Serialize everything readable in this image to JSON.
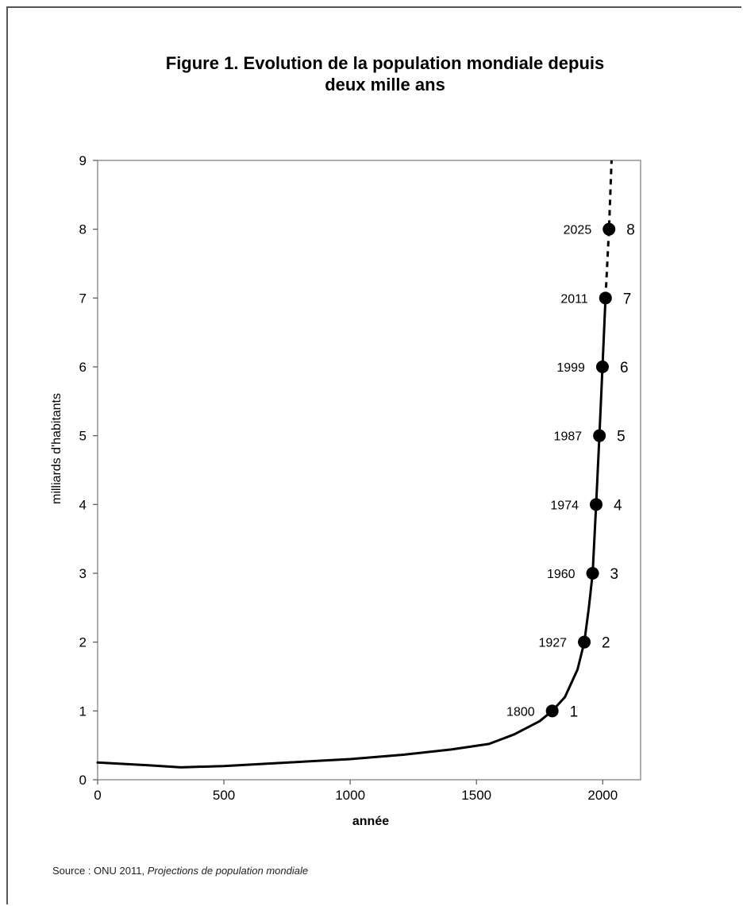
{
  "chart_data": {
    "type": "line",
    "title_line1": "Figure 1. Evolution de la population mondiale depuis",
    "title_line2": "deux mille ans",
    "xlabel": "année",
    "ylabel": "milliards d'habitants",
    "xlim": [
      0,
      2150
    ],
    "ylim": [
      0,
      9
    ],
    "x_ticks": [
      0,
      500,
      1000,
      1500,
      2000
    ],
    "y_ticks": [
      0,
      1,
      2,
      3,
      4,
      5,
      6,
      7,
      8,
      9
    ],
    "grid": false,
    "legend": "none",
    "line_color": "#000000",
    "series": [
      {
        "style": "solid",
        "x": [
          0,
          200,
          330,
          500,
          700,
          1000,
          1200,
          1400,
          1550,
          1650,
          1750,
          1800,
          1850,
          1900,
          1927,
          1945,
          1960,
          1974,
          1987,
          1999,
          2011
        ],
        "y": [
          0.25,
          0.21,
          0.18,
          0.2,
          0.24,
          0.3,
          0.36,
          0.44,
          0.52,
          0.66,
          0.85,
          1.0,
          1.2,
          1.6,
          2.0,
          2.5,
          3.0,
          4.0,
          5.0,
          6.0,
          7.0
        ]
      },
      {
        "style": "dashed",
        "x": [
          2011,
          2025,
          2035
        ],
        "y": [
          7.0,
          8.0,
          9.0
        ]
      }
    ],
    "milestones": [
      {
        "year": 1800,
        "year_label": "1800",
        "value": 1,
        "value_label": "1"
      },
      {
        "year": 1927,
        "year_label": "1927",
        "value": 2,
        "value_label": "2"
      },
      {
        "year": 1960,
        "year_label": "1960",
        "value": 3,
        "value_label": "3"
      },
      {
        "year": 1974,
        "year_label": "1974",
        "value": 4,
        "value_label": "4"
      },
      {
        "year": 1987,
        "year_label": "1987",
        "value": 5,
        "value_label": "5"
      },
      {
        "year": 1999,
        "year_label": "1999",
        "value": 6,
        "value_label": "6"
      },
      {
        "year": 2011,
        "year_label": "2011",
        "value": 7,
        "value_label": "7"
      },
      {
        "year": 2025,
        "year_label": "2025",
        "value": 8,
        "value_label": "8"
      }
    ]
  },
  "source": {
    "prefix": "Source : ONU 2011, ",
    "title": "Projections de population mondiale"
  }
}
